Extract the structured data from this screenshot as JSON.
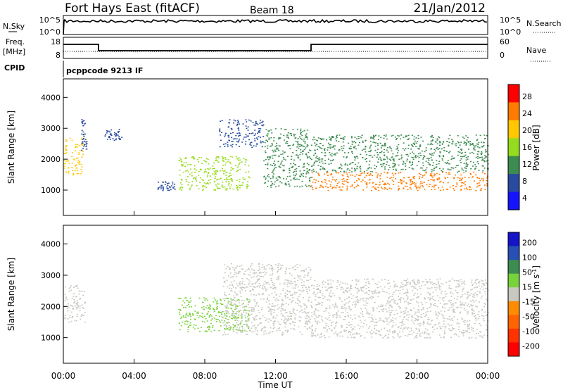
{
  "header": {
    "station": "Fort Hays East (fitACF)",
    "beam": "Beam 18",
    "date": "21/Jan/2012"
  },
  "status_panel": {
    "nsky_label": "N.Sky",
    "nsearch_label": "N.Search",
    "nsky_ticks": [
      "10^5",
      "10^0"
    ],
    "nsearch_ticks": [
      "10^5",
      "10^0"
    ],
    "freq_label": "Freq.",
    "freq_unit": "[MHz]",
    "freq_ticks": [
      "18",
      "8"
    ],
    "nave_label": "Nave",
    "nave_ticks": [
      "60",
      "0"
    ],
    "cpid_label": "CPID",
    "cpid_value": "pcppcode 9213 IF"
  },
  "chart_data": [
    {
      "type": "heatmap",
      "title": "",
      "xlabel": "Time UT",
      "ylabel": "Slant Range [km]",
      "x_tick_labels": [
        "00:00",
        "04:00",
        "08:00",
        "12:00",
        "16:00",
        "20:00",
        "00:00"
      ],
      "xlim_hours": [
        0,
        24
      ],
      "ylim_km": [
        180,
        4600
      ],
      "y_ticks": [
        1000,
        2000,
        3000,
        4000
      ],
      "colorbar": {
        "label": "Power [dB]",
        "ticks": [
          "28",
          "24",
          "20",
          "16",
          "12",
          "8",
          "4"
        ],
        "colors": [
          "#ff0000",
          "#ff7a00",
          "#ffc800",
          "#96dc1e",
          "#3c8c50",
          "#284ba0",
          "#1414ff"
        ]
      },
      "echo_regions": [
        {
          "t_start": 0.0,
          "t_end": 1.1,
          "range_low_km": 1500,
          "range_high_km": 2700,
          "power_db": 20
        },
        {
          "t_start": 1.0,
          "t_end": 1.3,
          "range_low_km": 2300,
          "range_high_km": 3300,
          "power_db": 8
        },
        {
          "t_start": 2.3,
          "t_end": 3.3,
          "range_low_km": 2600,
          "range_high_km": 3000,
          "power_db": 8
        },
        {
          "t_start": 5.3,
          "t_end": 6.3,
          "range_low_km": 1000,
          "range_high_km": 1300,
          "power_db": 8
        },
        {
          "t_start": 6.5,
          "t_end": 10.5,
          "range_low_km": 1000,
          "range_high_km": 2100,
          "power_db": 16
        },
        {
          "t_start": 8.8,
          "t_end": 11.3,
          "range_low_km": 2400,
          "range_high_km": 3300,
          "power_db": 8
        },
        {
          "t_start": 11.3,
          "t_end": 14.0,
          "range_low_km": 1100,
          "range_high_km": 3000,
          "power_db": 14
        },
        {
          "t_start": 14.0,
          "t_end": 24.0,
          "range_low_km": 1000,
          "range_high_km": 1600,
          "power_db": 26
        },
        {
          "t_start": 14.0,
          "t_end": 24.0,
          "range_low_km": 1600,
          "range_high_km": 2800,
          "power_db": 12
        }
      ]
    },
    {
      "type": "heatmap",
      "title": "",
      "xlabel": "Time UT",
      "ylabel": "Slant Range [km]",
      "x_tick_labels": [
        "00:00",
        "04:00",
        "08:00",
        "12:00",
        "16:00",
        "20:00",
        "00:00"
      ],
      "xlim_hours": [
        0,
        24
      ],
      "ylim_km": [
        180,
        4600
      ],
      "y_ticks": [
        1000,
        2000,
        3000,
        4000
      ],
      "colorbar": {
        "label": "Velocity [m s^-1]",
        "ticks": [
          "200",
          "100",
          "50",
          "15",
          "-15",
          "-50",
          "-100",
          "-200"
        ],
        "colors": [
          "#1414c8",
          "#2850b4",
          "#3c8c50",
          "#78d23c",
          "#c8c8c0",
          "#ff8c00",
          "#ff6400",
          "#ff3200",
          "#ff0000"
        ]
      },
      "echo_regions": [
        {
          "t_start": 0.0,
          "t_end": 1.2,
          "range_low_km": 1500,
          "range_high_km": 2700,
          "velocity": 0
        },
        {
          "t_start": 6.5,
          "t_end": 10.5,
          "range_low_km": 1200,
          "range_high_km": 2300,
          "velocity": 40
        },
        {
          "t_start": 9.0,
          "t_end": 14.0,
          "range_low_km": 1100,
          "range_high_km": 3400,
          "velocity": 0
        },
        {
          "t_start": 14.0,
          "t_end": 24.0,
          "range_low_km": 1000,
          "range_high_km": 2900,
          "velocity": 0
        }
      ]
    }
  ]
}
